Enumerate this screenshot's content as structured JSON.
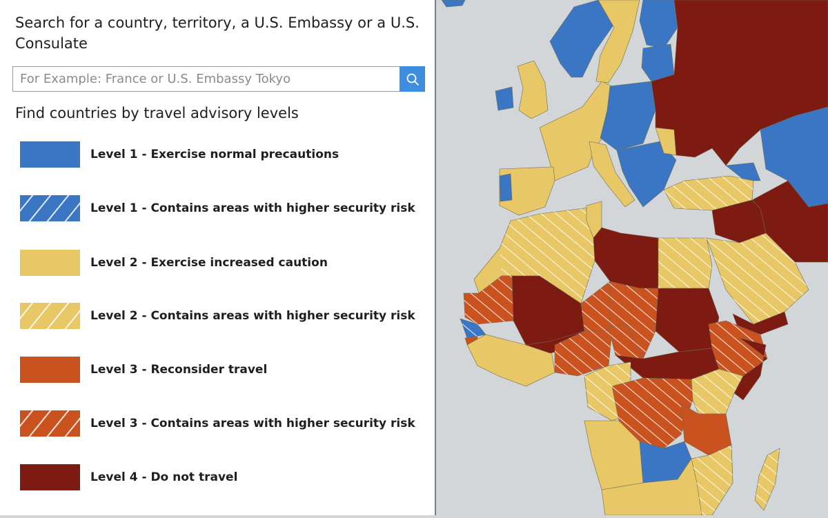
{
  "search": {
    "title": "Search for a country, territory, a U.S. Embassy or a U.S. Consulate",
    "placeholder": "For Example: France or U.S. Embassy Tokyo",
    "value": "",
    "button_icon": "search-icon"
  },
  "levels": {
    "title": "Find countries by travel advisory levels",
    "items": [
      {
        "label": "Level 1 - Exercise normal precautions",
        "color": "#3b76c4",
        "hatched": false
      },
      {
        "label": "Level 1 - Contains areas with higher security risk",
        "color": "#3b76c4",
        "hatched": true
      },
      {
        "label": "Level 2 - Exercise increased caution",
        "color": "#e7c766",
        "hatched": false
      },
      {
        "label": "Level 2 - Contains areas with higher security risk",
        "color": "#e7c766",
        "hatched": true
      },
      {
        "label": "Level 3 - Reconsider travel",
        "color": "#c9521f",
        "hatched": false
      },
      {
        "label": "Level 3 - Contains areas with higher security risk",
        "color": "#c9521f",
        "hatched": true
      },
      {
        "label": "Level 4 - Do not travel",
        "color": "#7d1a12",
        "hatched": false
      }
    ]
  },
  "map": {
    "colors": {
      "water": "#d3d6d8",
      "level1": "#3b76c4",
      "level2": "#e7c766",
      "level3": "#c9521f",
      "level4": "#7d1a12"
    }
  }
}
